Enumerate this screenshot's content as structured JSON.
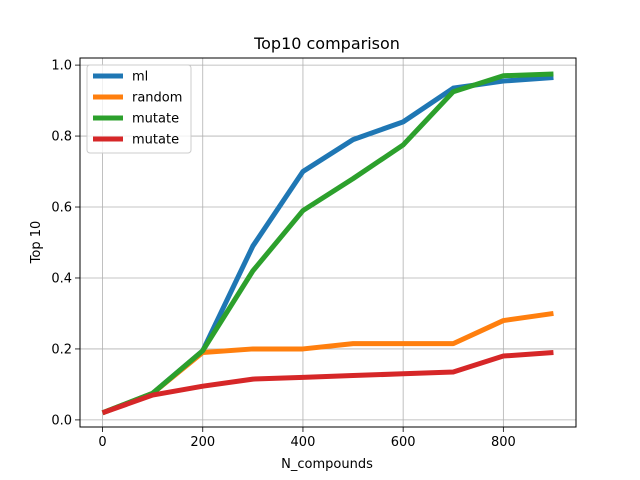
{
  "chart_data": {
    "type": "line",
    "title": "Top10 comparison",
    "xlabel": "N_compounds",
    "ylabel": "Top 10",
    "xlim": [
      -45,
      945
    ],
    "ylim": [
      -0.02,
      1.02
    ],
    "xticks": [
      0,
      200,
      400,
      600,
      800
    ],
    "yticks": [
      0.0,
      0.2,
      0.4,
      0.6,
      0.8,
      1.0
    ],
    "xtick_labels": [
      "0",
      "200",
      "400",
      "600",
      "800"
    ],
    "ytick_labels": [
      "0.0",
      "0.2",
      "0.4",
      "0.6",
      "0.8",
      "1.0"
    ],
    "grid": true,
    "legend_position": "top-left",
    "x": [
      0,
      100,
      200,
      300,
      400,
      500,
      600,
      700,
      800,
      900
    ],
    "series": [
      {
        "name": "ml",
        "color": "#1f77b4",
        "values": [
          0.02,
          0.075,
          0.195,
          0.49,
          0.7,
          0.79,
          0.84,
          0.935,
          0.955,
          0.965
        ]
      },
      {
        "name": "random",
        "color": "#ff7f0e",
        "values": [
          0.02,
          0.075,
          0.19,
          0.2,
          0.2,
          0.215,
          0.215,
          0.215,
          0.28,
          0.3
        ]
      },
      {
        "name": "mutate",
        "color": "#2ca02c",
        "values": [
          0.02,
          0.075,
          0.195,
          0.42,
          0.59,
          0.68,
          0.775,
          0.925,
          0.97,
          0.975
        ]
      },
      {
        "name": "mutate",
        "color": "#d62728",
        "values": [
          0.02,
          0.07,
          0.095,
          0.115,
          0.12,
          0.125,
          0.13,
          0.135,
          0.18,
          0.19
        ]
      }
    ]
  }
}
